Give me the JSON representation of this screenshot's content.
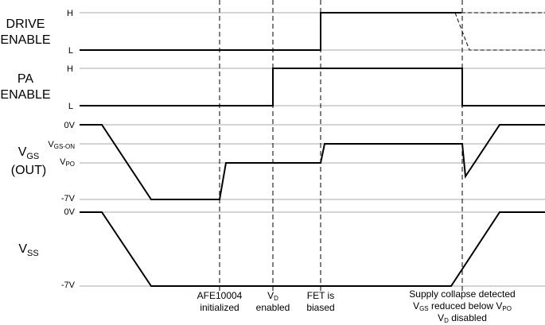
{
  "signals": [
    {
      "label": [
        "DRIVE",
        "ENABLE"
      ],
      "levels": [
        "H",
        "L"
      ]
    },
    {
      "label": [
        "PA",
        "ENABLE"
      ],
      "levels": [
        "H",
        "L"
      ]
    },
    {
      "label": [
        "V",
        "GS",
        "(OUT)"
      ],
      "levels": [
        "0V",
        [
          "V",
          "GS-ON"
        ],
        [
          "V",
          "PO"
        ],
        "-7V"
      ]
    },
    {
      "label": [
        "V",
        "SS"
      ],
      "levels": [
        "0V",
        "-7V"
      ]
    }
  ],
  "events": [
    {
      "lines": [
        "AFE10004",
        "initialized"
      ]
    },
    {
      "lines": [
        [
          "V",
          "D"
        ],
        "enabled"
      ]
    },
    {
      "lines": [
        "FET is",
        "biased"
      ]
    },
    {
      "lines": [
        "Supply collapse detected",
        [
          "V",
          "GS",
          " reduced below V",
          "PO"
        ],
        [
          "V",
          "D",
          " disabled"
        ]
      ]
    }
  ]
}
